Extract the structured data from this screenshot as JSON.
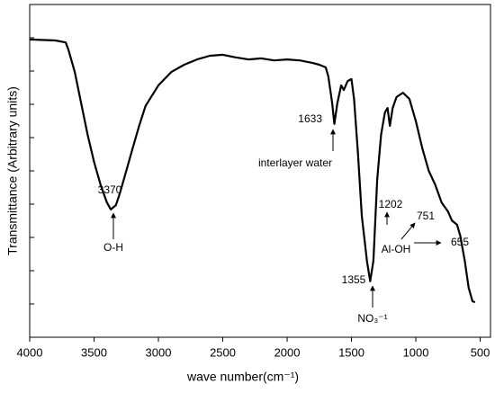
{
  "chart_data": {
    "type": "line",
    "x_label": "wave number(cm⁻¹)",
    "y_label": "Transmittance (Arbitrary units)",
    "color": "#000000",
    "x": [
      4000,
      3800,
      3720,
      3700,
      3650,
      3600,
      3550,
      3500,
      3450,
      3400,
      3370,
      3330,
      3300,
      3250,
      3200,
      3150,
      3100,
      3000,
      2900,
      2800,
      2700,
      2600,
      2500,
      2400,
      2300,
      2200,
      2100,
      2000,
      1900,
      1800,
      1750,
      1700,
      1680,
      1650,
      1633,
      1610,
      1580,
      1560,
      1530,
      1500,
      1480,
      1450,
      1420,
      1380,
      1355,
      1330,
      1300,
      1270,
      1240,
      1220,
      1202,
      1180,
      1150,
      1100,
      1050,
      1000,
      950,
      900,
      850,
      800,
      751,
      720,
      680,
      655,
      620,
      590,
      560,
      540
    ],
    "values": [
      8.95,
      8.92,
      8.86,
      8.65,
      7.97,
      7.03,
      6.08,
      5.27,
      4.59,
      4.05,
      3.84,
      3.97,
      4.32,
      5.0,
      5.68,
      6.35,
      6.95,
      7.57,
      7.97,
      8.19,
      8.35,
      8.46,
      8.49,
      8.41,
      8.35,
      8.38,
      8.32,
      8.35,
      8.32,
      8.24,
      8.19,
      8.11,
      7.84,
      7.03,
      6.41,
      7.03,
      7.57,
      7.43,
      7.7,
      7.76,
      7.16,
      5.54,
      3.65,
      2.3,
      1.68,
      2.3,
      4.73,
      6.08,
      6.76,
      6.89,
      6.35,
      6.89,
      7.22,
      7.35,
      7.16,
      6.49,
      5.68,
      5.0,
      4.59,
      4.05,
      3.78,
      3.51,
      3.38,
      3.05,
      2.3,
      1.49,
      1.08,
      1.05
    ],
    "xlim": [
      4000,
      420
    ],
    "xticks": [
      4000,
      3500,
      3000,
      2500,
      2000,
      1500,
      1000,
      500
    ],
    "ylim": [
      0,
      10
    ],
    "yticks": [
      1,
      2,
      3,
      4,
      5,
      6,
      7,
      8,
      9
    ],
    "annotations": [
      "3370",
      "O-H",
      "1633",
      "interlayer water",
      "1355",
      "NO₃⁻¹",
      "1202",
      "751",
      "Al-OH",
      "655"
    ]
  }
}
